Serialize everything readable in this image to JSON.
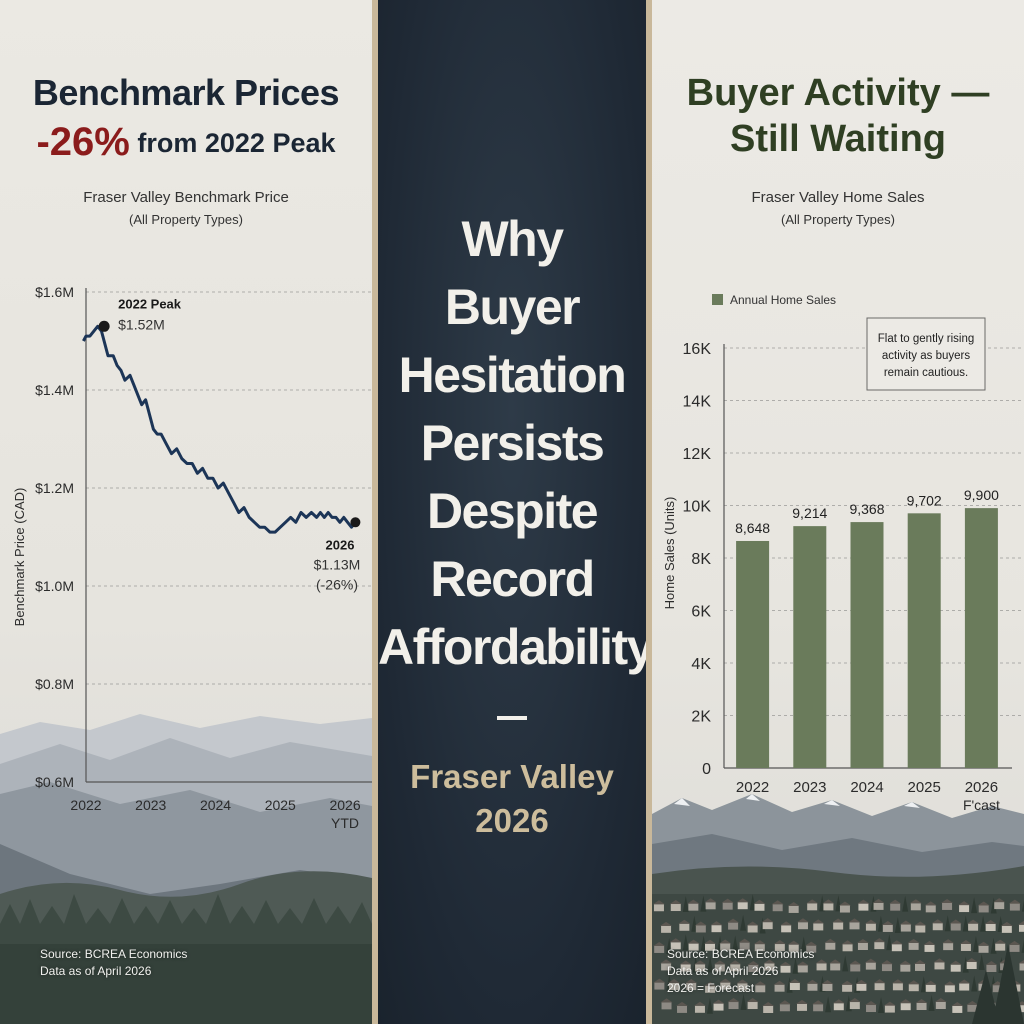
{
  "left": {
    "title_line1": "Benchmark Prices",
    "title_pct": "-26%",
    "title_rest": " from 2022 Peak",
    "chart_title": "Fraser Valley Benchmark Price",
    "chart_subtitle": "(All Property Types)",
    "source_line1": "Source: BCREA Economics",
    "source_line2": "Data as of April 2026"
  },
  "middle": {
    "title_lines": [
      "Why",
      "Buyer",
      "Hesitation",
      "Persists",
      "Despite",
      "Record",
      "Affordability"
    ],
    "subtitle_lines": [
      "Fraser Valley",
      "2026"
    ]
  },
  "right": {
    "title_line1": "Buyer Activity —",
    "title_line2": "Still Waiting",
    "chart_title": "Fraser Valley Home Sales",
    "chart_subtitle": "(All Property Types)",
    "source_line1": "Source: BCREA Economics",
    "source_line2": "Data as of April 2026",
    "source_line3": "2026 = Forecast"
  },
  "colors": {
    "line": "#1c3557",
    "bar": "#6a7b5b",
    "negative": "#8b1c1c",
    "middle_bg": "#1f2935",
    "accent": "#cdbd9c"
  },
  "chart_data": [
    {
      "type": "line",
      "title": "Fraser Valley Benchmark Price",
      "subtitle": "(All Property Types)",
      "ylabel": "Benchmark Price (CAD)",
      "xlabel": "",
      "ylim": [
        0.6,
        1.6
      ],
      "xlim": [
        2022,
        2026.2
      ],
      "y_ticks": [
        {
          "v": 1.6,
          "label": "$1.6M"
        },
        {
          "v": 1.4,
          "label": "$1.4M"
        },
        {
          "v": 1.2,
          "label": "$1.2M"
        },
        {
          "v": 1.0,
          "label": "$1.0M"
        },
        {
          "v": 0.8,
          "label": "$0.8M"
        },
        {
          "v": 0.6,
          "label": "$0.6M"
        }
      ],
      "x_ticks": [
        {
          "v": 2022,
          "label": "2022",
          "label2": ""
        },
        {
          "v": 2023,
          "label": "2023",
          "label2": ""
        },
        {
          "v": 2024,
          "label": "2024",
          "label2": ""
        },
        {
          "v": 2025,
          "label": "2025",
          "label2": ""
        },
        {
          "v": 2026,
          "label": "2026",
          "label2": "YTD"
        }
      ],
      "grid": true,
      "series": [
        {
          "name": "",
          "x": [
            2021.96,
            2022.0,
            2022.06,
            2022.12,
            2022.18,
            2022.24,
            2022.28,
            2022.34,
            2022.42,
            2022.48,
            2022.54,
            2022.6,
            2022.68,
            2022.74,
            2022.8,
            2022.86,
            2022.92,
            2022.98,
            2023.04,
            2023.1,
            2023.16,
            2023.24,
            2023.32,
            2023.4,
            2023.48,
            2023.56,
            2023.64,
            2023.72,
            2023.8,
            2023.88,
            2023.96,
            2024.04,
            2024.12,
            2024.2,
            2024.28,
            2024.36,
            2024.44,
            2024.52,
            2024.6,
            2024.68,
            2024.76,
            2024.84,
            2024.92,
            2025.0,
            2025.08,
            2025.16,
            2025.24,
            2025.32,
            2025.4,
            2025.48,
            2025.56,
            2025.62,
            2025.68,
            2025.74,
            2025.8,
            2025.86,
            2025.92,
            2025.98,
            2026.04,
            2026.1,
            2026.16
          ],
          "values": [
            1.5,
            1.51,
            1.51,
            1.52,
            1.53,
            1.52,
            1.5,
            1.47,
            1.47,
            1.45,
            1.44,
            1.42,
            1.43,
            1.41,
            1.39,
            1.37,
            1.38,
            1.35,
            1.32,
            1.31,
            1.31,
            1.29,
            1.27,
            1.28,
            1.26,
            1.25,
            1.25,
            1.23,
            1.24,
            1.22,
            1.22,
            1.2,
            1.21,
            1.19,
            1.17,
            1.15,
            1.16,
            1.14,
            1.13,
            1.12,
            1.12,
            1.11,
            1.11,
            1.12,
            1.13,
            1.14,
            1.13,
            1.15,
            1.14,
            1.15,
            1.14,
            1.15,
            1.14,
            1.15,
            1.14,
            1.14,
            1.13,
            1.14,
            1.13,
            1.12,
            1.13
          ]
        }
      ],
      "annotations": [
        {
          "x": 2022.28,
          "y": 1.53,
          "label": "2022 Peak",
          "value": "$1.52M"
        },
        {
          "x": 2026.16,
          "y": 1.13,
          "label": "2026",
          "value": "$1.13M",
          "value2": "(-26%)"
        }
      ]
    },
    {
      "type": "bar",
      "title": "Fraser Valley Home Sales",
      "subtitle": "(All Property Types)",
      "ylabel": "Home Sales (Units)",
      "xlabel": "",
      "ylim": [
        0,
        16000
      ],
      "y_ticks": [
        {
          "v": 16000,
          "label": "16K"
        },
        {
          "v": 14000,
          "label": "14K"
        },
        {
          "v": 12000,
          "label": "12K"
        },
        {
          "v": 10000,
          "label": "10K"
        },
        {
          "v": 8000,
          "label": "8K"
        },
        {
          "v": 6000,
          "label": "6K"
        },
        {
          "v": 4000,
          "label": "4K"
        },
        {
          "v": 2000,
          "label": "2K"
        },
        {
          "v": 0,
          "label": "0"
        }
      ],
      "categories": [
        "2022",
        "2023",
        "2024",
        "2025",
        "2026"
      ],
      "category_sublabels": [
        "",
        "",
        "",
        "",
        "F'cast"
      ],
      "series": [
        {
          "name": "Annual Home Sales",
          "values": [
            8648,
            9214,
            9368,
            9702,
            9900
          ]
        }
      ],
      "data_labels": [
        "8,648",
        "9,214",
        "9,368",
        "9,702",
        "9,900"
      ],
      "legend": "top-left",
      "grid": true,
      "annotation": [
        "Flat to gently rising",
        "activity as buyers",
        "remain cautious."
      ]
    }
  ]
}
